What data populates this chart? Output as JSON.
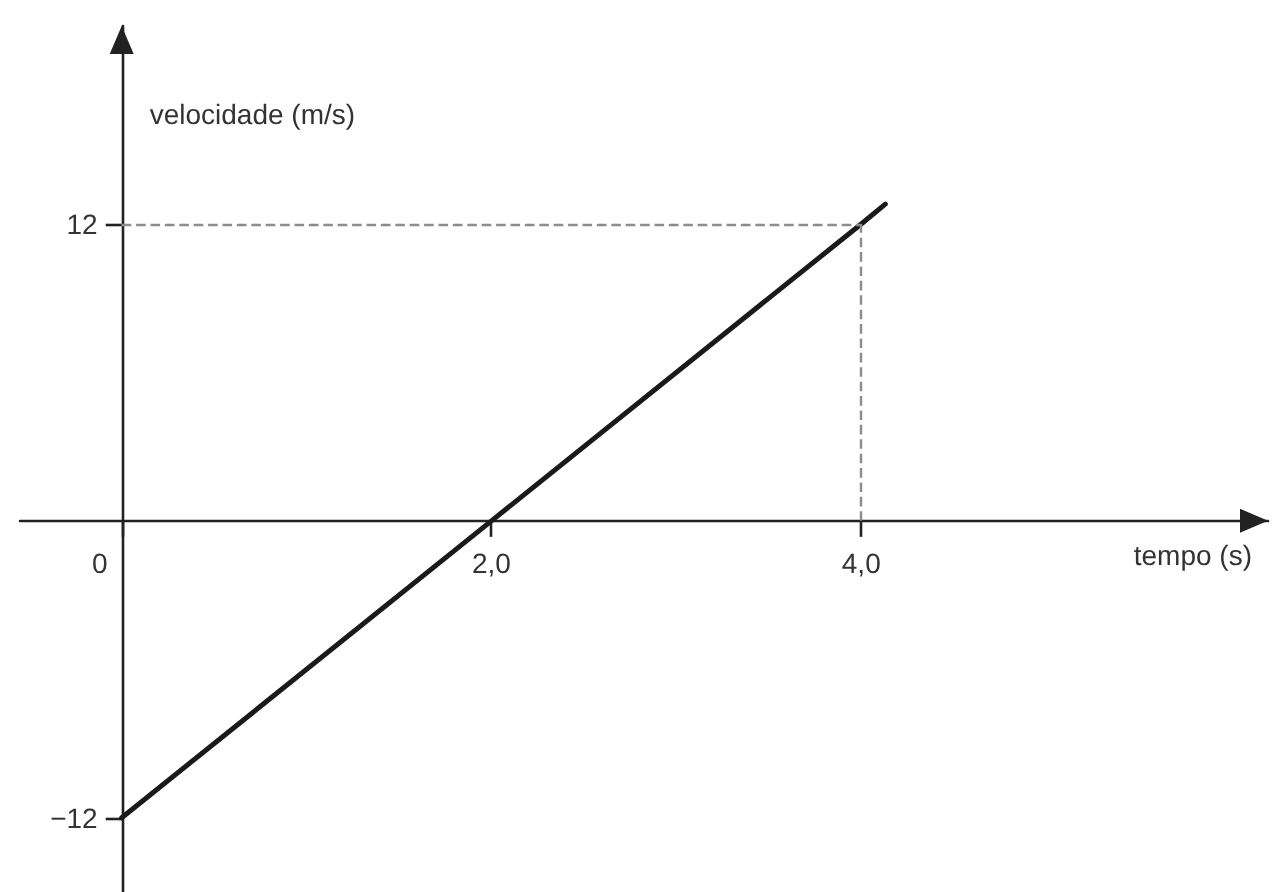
{
  "chart_data": {
    "type": "line",
    "xlabel": "tempo (s)",
    "ylabel": "velocidade (m/s)",
    "x": [
      0,
      2,
      4,
      4.13
    ],
    "values": [
      -12,
      0,
      12,
      12.8
    ],
    "color": "#1a1a1a",
    "xlim": [
      -0.55,
      6.2
    ],
    "ylim": [
      -15,
      20
    ],
    "xticks": [
      0,
      {
        "value": 2,
        "label": "2,0"
      },
      {
        "value": 4,
        "label": "4,0"
      }
    ],
    "yticks": [
      {
        "value": -12,
        "label": "−12"
      },
      12
    ],
    "ref_lines": [
      {
        "axis": "y",
        "value": 12,
        "color": "#8c8c8c",
        "line_style": "dashed"
      },
      {
        "axis": "x",
        "value": 4,
        "color": "#8c8c8c",
        "line_style": "dashed"
      }
    ]
  }
}
